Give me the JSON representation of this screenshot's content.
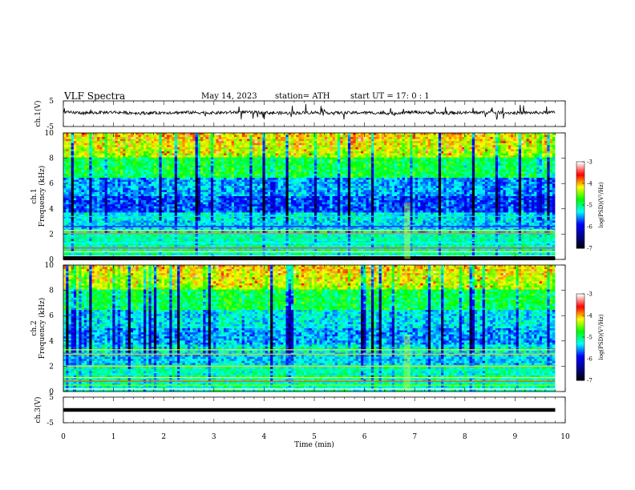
{
  "header": {
    "title": "VLF  Spectra",
    "date": "May 14, 2023",
    "station": "station= ATH",
    "start": "start  UT  =    17: 0   : 1"
  },
  "chart_data": [
    {
      "id": "ch1-waveform",
      "type": "line",
      "ylabel": "ch.1(V)",
      "ylim": [
        -5,
        5
      ],
      "yticks": [
        "5",
        "-5"
      ],
      "xlim": [
        0,
        10
      ],
      "x": [
        0,
        0.5,
        1,
        1.5,
        2,
        2.5,
        3,
        3.5,
        4,
        4.5,
        5,
        5.5,
        6,
        6.5,
        7,
        7.5,
        8,
        8.5,
        9,
        9.5,
        9.8
      ],
      "y": [
        0.5,
        0.3,
        0.6,
        0.2,
        0.4,
        0.5,
        0.3,
        0.6,
        0.4,
        0.2,
        0.5,
        0.3,
        0.4,
        0.2,
        0.6,
        0.3,
        0.4,
        0.5,
        0.3,
        0.4,
        0.5
      ]
    },
    {
      "id": "ch1-spectrogram",
      "type": "heatmap",
      "ylabel": "ch.1\nFrequency  (kHz)",
      "ylim": [
        0,
        10
      ],
      "yticks": [
        "0",
        "2",
        "4",
        "6",
        "8",
        "10"
      ],
      "xlim": [
        0,
        10
      ],
      "colorbar": {
        "label": "log(PSD)(V²/Hz)",
        "min": -7,
        "max": -3,
        "ticks": [
          "-3",
          "-4",
          "-5",
          "-6",
          "-7"
        ]
      }
    },
    {
      "id": "ch2-spectrogram",
      "type": "heatmap",
      "ylabel": "ch.2\nFrequency  (kHz)",
      "ylim": [
        0,
        10
      ],
      "yticks": [
        "0",
        "2",
        "4",
        "6",
        "8",
        "10"
      ],
      "xlim": [
        0,
        10
      ],
      "colorbar": {
        "label": "log(PSD)(V²/Hz)",
        "min": -7,
        "max": -3,
        "ticks": [
          "-3",
          "-4",
          "-5",
          "-6",
          "-7"
        ]
      }
    },
    {
      "id": "ch3-waveform",
      "type": "line",
      "ylabel": "ch.3(V)",
      "ylim": [
        -5,
        5
      ],
      "yticks": [
        "5",
        "-5"
      ],
      "xlim": [
        0,
        10
      ],
      "x": [
        0,
        9.8
      ],
      "y": [
        0,
        0
      ]
    }
  ],
  "xaxis": {
    "label": "Time  (min)",
    "ticks": [
      "0",
      "1",
      "2",
      "3",
      "4",
      "5",
      "6",
      "7",
      "8",
      "9",
      "10"
    ]
  },
  "colors": {
    "colormap": [
      "#000000",
      "#00008b",
      "#0000ff",
      "#00ffff",
      "#00ff00",
      "#ffff00",
      "#ff0000",
      "#ffffff"
    ]
  }
}
